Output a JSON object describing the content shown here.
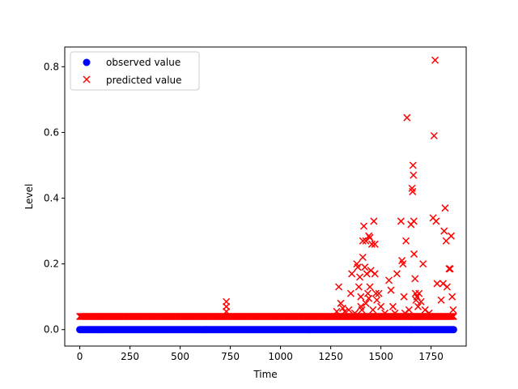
{
  "chart_data": {
    "type": "scatter",
    "title": "",
    "xlabel": "Time",
    "ylabel": "Level",
    "xlim": [
      -75,
      1925
    ],
    "ylim": [
      -0.05,
      0.86
    ],
    "xticks": [
      0,
      250,
      500,
      750,
      1000,
      1250,
      1500,
      1750
    ],
    "yticks": [
      0.0,
      0.2,
      0.4,
      0.6,
      0.8
    ],
    "ytick_format": 1,
    "grid": false,
    "legend_position": "top-left",
    "n_points": 1863,
    "series": [
      {
        "name": "observed value",
        "marker": "circle",
        "color": "#0000ff",
        "constant_y": 0.0,
        "x_range": [
          0,
          1862
        ]
      },
      {
        "name": "predicted value",
        "marker": "x",
        "color": "#ff0000",
        "baseline_y": 0.04,
        "x_range": [
          0,
          1862
        ],
        "outliers": [
          [
            730,
            0.085
          ],
          [
            730,
            0.07
          ],
          [
            730,
            0.055
          ],
          [
            1280,
            0.055
          ],
          [
            1290,
            0.13
          ],
          [
            1300,
            0.08
          ],
          [
            1310,
            0.065
          ],
          [
            1320,
            0.055
          ],
          [
            1340,
            0.06
          ],
          [
            1350,
            0.11
          ],
          [
            1355,
            0.17
          ],
          [
            1370,
            0.05
          ],
          [
            1380,
            0.2
          ],
          [
            1385,
            0.19
          ],
          [
            1390,
            0.13
          ],
          [
            1395,
            0.16
          ],
          [
            1400,
            0.1
          ],
          [
            1400,
            0.07
          ],
          [
            1405,
            0.06
          ],
          [
            1410,
            0.27
          ],
          [
            1410,
            0.22
          ],
          [
            1415,
            0.315
          ],
          [
            1420,
            0.19
          ],
          [
            1425,
            0.27
          ],
          [
            1425,
            0.08
          ],
          [
            1430,
            0.17
          ],
          [
            1435,
            0.11
          ],
          [
            1440,
            0.285
          ],
          [
            1440,
            0.095
          ],
          [
            1445,
            0.28
          ],
          [
            1445,
            0.13
          ],
          [
            1450,
            0.18
          ],
          [
            1455,
            0.26
          ],
          [
            1460,
            0.06
          ],
          [
            1465,
            0.33
          ],
          [
            1470,
            0.26
          ],
          [
            1470,
            0.17
          ],
          [
            1475,
            0.11
          ],
          [
            1480,
            0.09
          ],
          [
            1490,
            0.11
          ],
          [
            1500,
            0.07
          ],
          [
            1520,
            0.05
          ],
          [
            1540,
            0.15
          ],
          [
            1550,
            0.12
          ],
          [
            1560,
            0.07
          ],
          [
            1570,
            0.05
          ],
          [
            1580,
            0.17
          ],
          [
            1600,
            0.33
          ],
          [
            1605,
            0.21
          ],
          [
            1610,
            0.2
          ],
          [
            1615,
            0.1
          ],
          [
            1620,
            0.05
          ],
          [
            1625,
            0.27
          ],
          [
            1630,
            0.645
          ],
          [
            1640,
            0.06
          ],
          [
            1650,
            0.32
          ],
          [
            1655,
            0.43
          ],
          [
            1658,
            0.42
          ],
          [
            1660,
            0.5
          ],
          [
            1662,
            0.47
          ],
          [
            1664,
            0.33
          ],
          [
            1665,
            0.23
          ],
          [
            1670,
            0.155
          ],
          [
            1672,
            0.11
          ],
          [
            1675,
            0.09
          ],
          [
            1680,
            0.1
          ],
          [
            1685,
            0.07
          ],
          [
            1690,
            0.11
          ],
          [
            1700,
            0.085
          ],
          [
            1710,
            0.2
          ],
          [
            1720,
            0.06
          ],
          [
            1740,
            0.05
          ],
          [
            1760,
            0.34
          ],
          [
            1765,
            0.59
          ],
          [
            1770,
            0.82
          ],
          [
            1775,
            0.33
          ],
          [
            1780,
            0.14
          ],
          [
            1800,
            0.09
          ],
          [
            1810,
            0.14
          ],
          [
            1815,
            0.3
          ],
          [
            1820,
            0.37
          ],
          [
            1825,
            0.27
          ],
          [
            1830,
            0.13
          ],
          [
            1840,
            0.185
          ],
          [
            1845,
            0.185
          ],
          [
            1850,
            0.285
          ],
          [
            1855,
            0.1
          ],
          [
            1860,
            0.06
          ]
        ]
      }
    ]
  }
}
